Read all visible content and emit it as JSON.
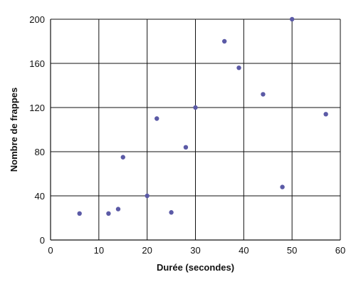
{
  "chart_data": {
    "type": "scatter",
    "title": "",
    "xlabel": "Durée (secondes)",
    "ylabel": "Nombre de frappes",
    "xlim": [
      0,
      60
    ],
    "ylim": [
      0,
      200
    ],
    "x_ticks": [
      0,
      10,
      20,
      30,
      40,
      50,
      60
    ],
    "y_ticks": [
      0,
      40,
      80,
      120,
      160,
      200
    ],
    "grid": true,
    "legend": "none",
    "marker_color": "#5b5aa6",
    "points": [
      {
        "x": 6,
        "y": 24
      },
      {
        "x": 12,
        "y": 24
      },
      {
        "x": 14,
        "y": 28
      },
      {
        "x": 15,
        "y": 75
      },
      {
        "x": 20,
        "y": 40
      },
      {
        "x": 22,
        "y": 110
      },
      {
        "x": 25,
        "y": 25
      },
      {
        "x": 28,
        "y": 84
      },
      {
        "x": 30,
        "y": 120
      },
      {
        "x": 36,
        "y": 180
      },
      {
        "x": 39,
        "y": 156
      },
      {
        "x": 44,
        "y": 132
      },
      {
        "x": 48,
        "y": 48
      },
      {
        "x": 50,
        "y": 200
      },
      {
        "x": 57,
        "y": 114
      }
    ]
  }
}
